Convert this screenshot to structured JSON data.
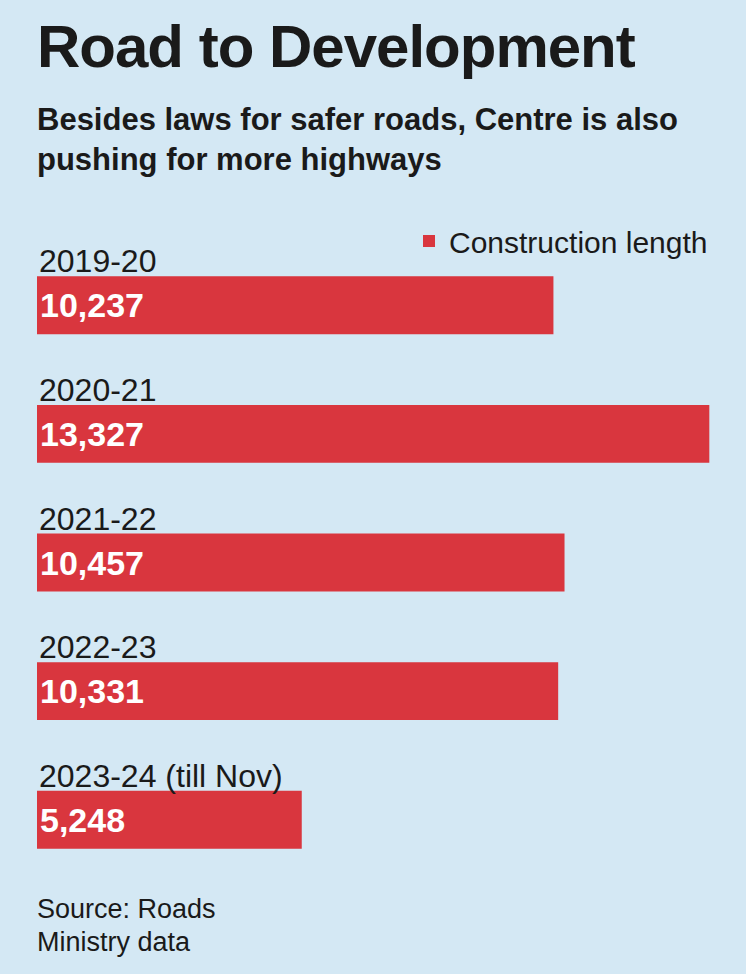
{
  "chart_data": {
    "type": "bar",
    "orientation": "horizontal",
    "title": "Road to Development",
    "subtitle": "Besides laws for safer roads, Centre is also pushing for more highways",
    "categories": [
      "2019-20",
      "2020-21",
      "2021-22",
      "2022-23",
      "2023-24 (till Nov)"
    ],
    "series": [
      {
        "name": "Construction length",
        "color": "#d9363e",
        "values": [
          10237,
          13327,
          10457,
          10331,
          5248
        ],
        "value_labels": [
          "10,237",
          "13,327",
          "10,457",
          "10,331",
          "5,248"
        ]
      }
    ],
    "data_labels": true,
    "tick_labels": false,
    "grid": false,
    "legend": "top right",
    "xlim": [
      0,
      13400
    ],
    "source": "Source: Roads Ministry data"
  }
}
